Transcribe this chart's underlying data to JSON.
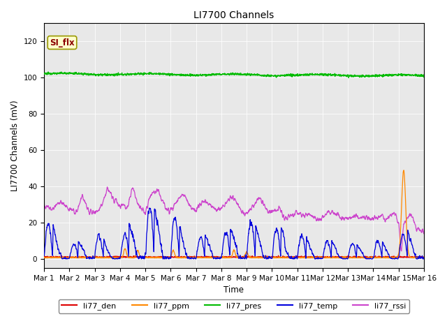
{
  "title": "LI7700 Channels",
  "ylabel": "LI7700 Channels (mV)",
  "xlabel": "Time",
  "ylim": [
    -5,
    130
  ],
  "yticks": [
    0,
    20,
    40,
    60,
    80,
    100,
    120
  ],
  "xtick_labels": [
    "Mar 1",
    "Mar 2",
    "Mar 3",
    "Mar 4",
    "Mar 5",
    "Mar 6",
    "Mar 7",
    "Mar 8",
    "Mar 9",
    "Mar 10",
    "Mar 11",
    "Mar 12",
    "Mar 13",
    "Mar 14",
    "Mar 15",
    "Mar 16"
  ],
  "bg_color": "#e8e8e8",
  "legend_label": "SI_flx",
  "legend_bg": "#ffffcc",
  "legend_border": "#999900",
  "colors": {
    "li77_den": "#dd0000",
    "li77_ppm": "#ff8800",
    "li77_pres": "#00bb00",
    "li77_temp": "#0000dd",
    "li77_rssi": "#cc44cc"
  },
  "figsize": [
    6.4,
    4.8
  ],
  "dpi": 100
}
